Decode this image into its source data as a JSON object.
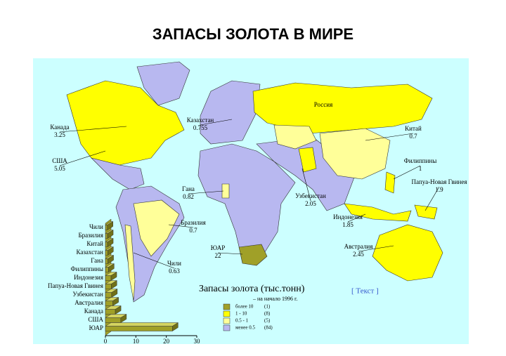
{
  "title": "ЗАПАСЫ ЗОЛОТА В МИРЕ",
  "map": {
    "labels": [
      {
        "name": "Канада",
        "value": 3.25
      },
      {
        "name": "США",
        "value": 5.05
      },
      {
        "name": "Казахстан",
        "value": 0.755
      },
      {
        "name": "Россия"
      },
      {
        "name": "Китай",
        "value": 0.7
      },
      {
        "name": "Филиппины",
        "value": 1
      },
      {
        "name": "Папуа-Новая Гвинея",
        "value": 1.9
      },
      {
        "name": "Гана",
        "value": 0.82
      },
      {
        "name": "Бразилия",
        "value": 0.7
      },
      {
        "name": "Узбекистан",
        "value": 2.05
      },
      {
        "name": "Индонезия",
        "value": 1.85
      },
      {
        "name": "ЮАР",
        "value": 22
      },
      {
        "name": "Австралия",
        "value": 2.45
      },
      {
        "name": "Чили",
        "value": 0.63
      }
    ]
  },
  "legend": {
    "title": "Запасы золота (тыс.тонн)",
    "subtitle": "– на начало 1996 г.",
    "items": [
      {
        "label": "более 10",
        "count": "(1)",
        "color": "#a0a028"
      },
      {
        "label": "1 - 10",
        "count": "(8)",
        "color": "#ffff00"
      },
      {
        "label": "0.5 - 1",
        "count": "(5)",
        "color": "#ffff99"
      },
      {
        "label": "менее 0.5",
        "count": "(84)",
        "color": "#b8b8f0"
      }
    ]
  },
  "link": "[ Текст ]",
  "chart_data": {
    "type": "bar",
    "orientation": "horizontal",
    "color": "#a0a028",
    "categories": [
      "Чили",
      "Бразилия",
      "Китай",
      "Казахстан",
      "Гана",
      "Филиппины",
      "Индонезия",
      "Папуа-Новая Гвинея",
      "Узбекистан",
      "Австралия",
      "Канада",
      "США",
      "ЮАР"
    ],
    "values": [
      0.63,
      0.7,
      0.7,
      0.755,
      0.82,
      1,
      1.85,
      1.9,
      2.05,
      2.45,
      3.25,
      5.05,
      22
    ],
    "xlim": [
      0,
      30
    ],
    "xticks": [
      0,
      10,
      20,
      30
    ]
  }
}
